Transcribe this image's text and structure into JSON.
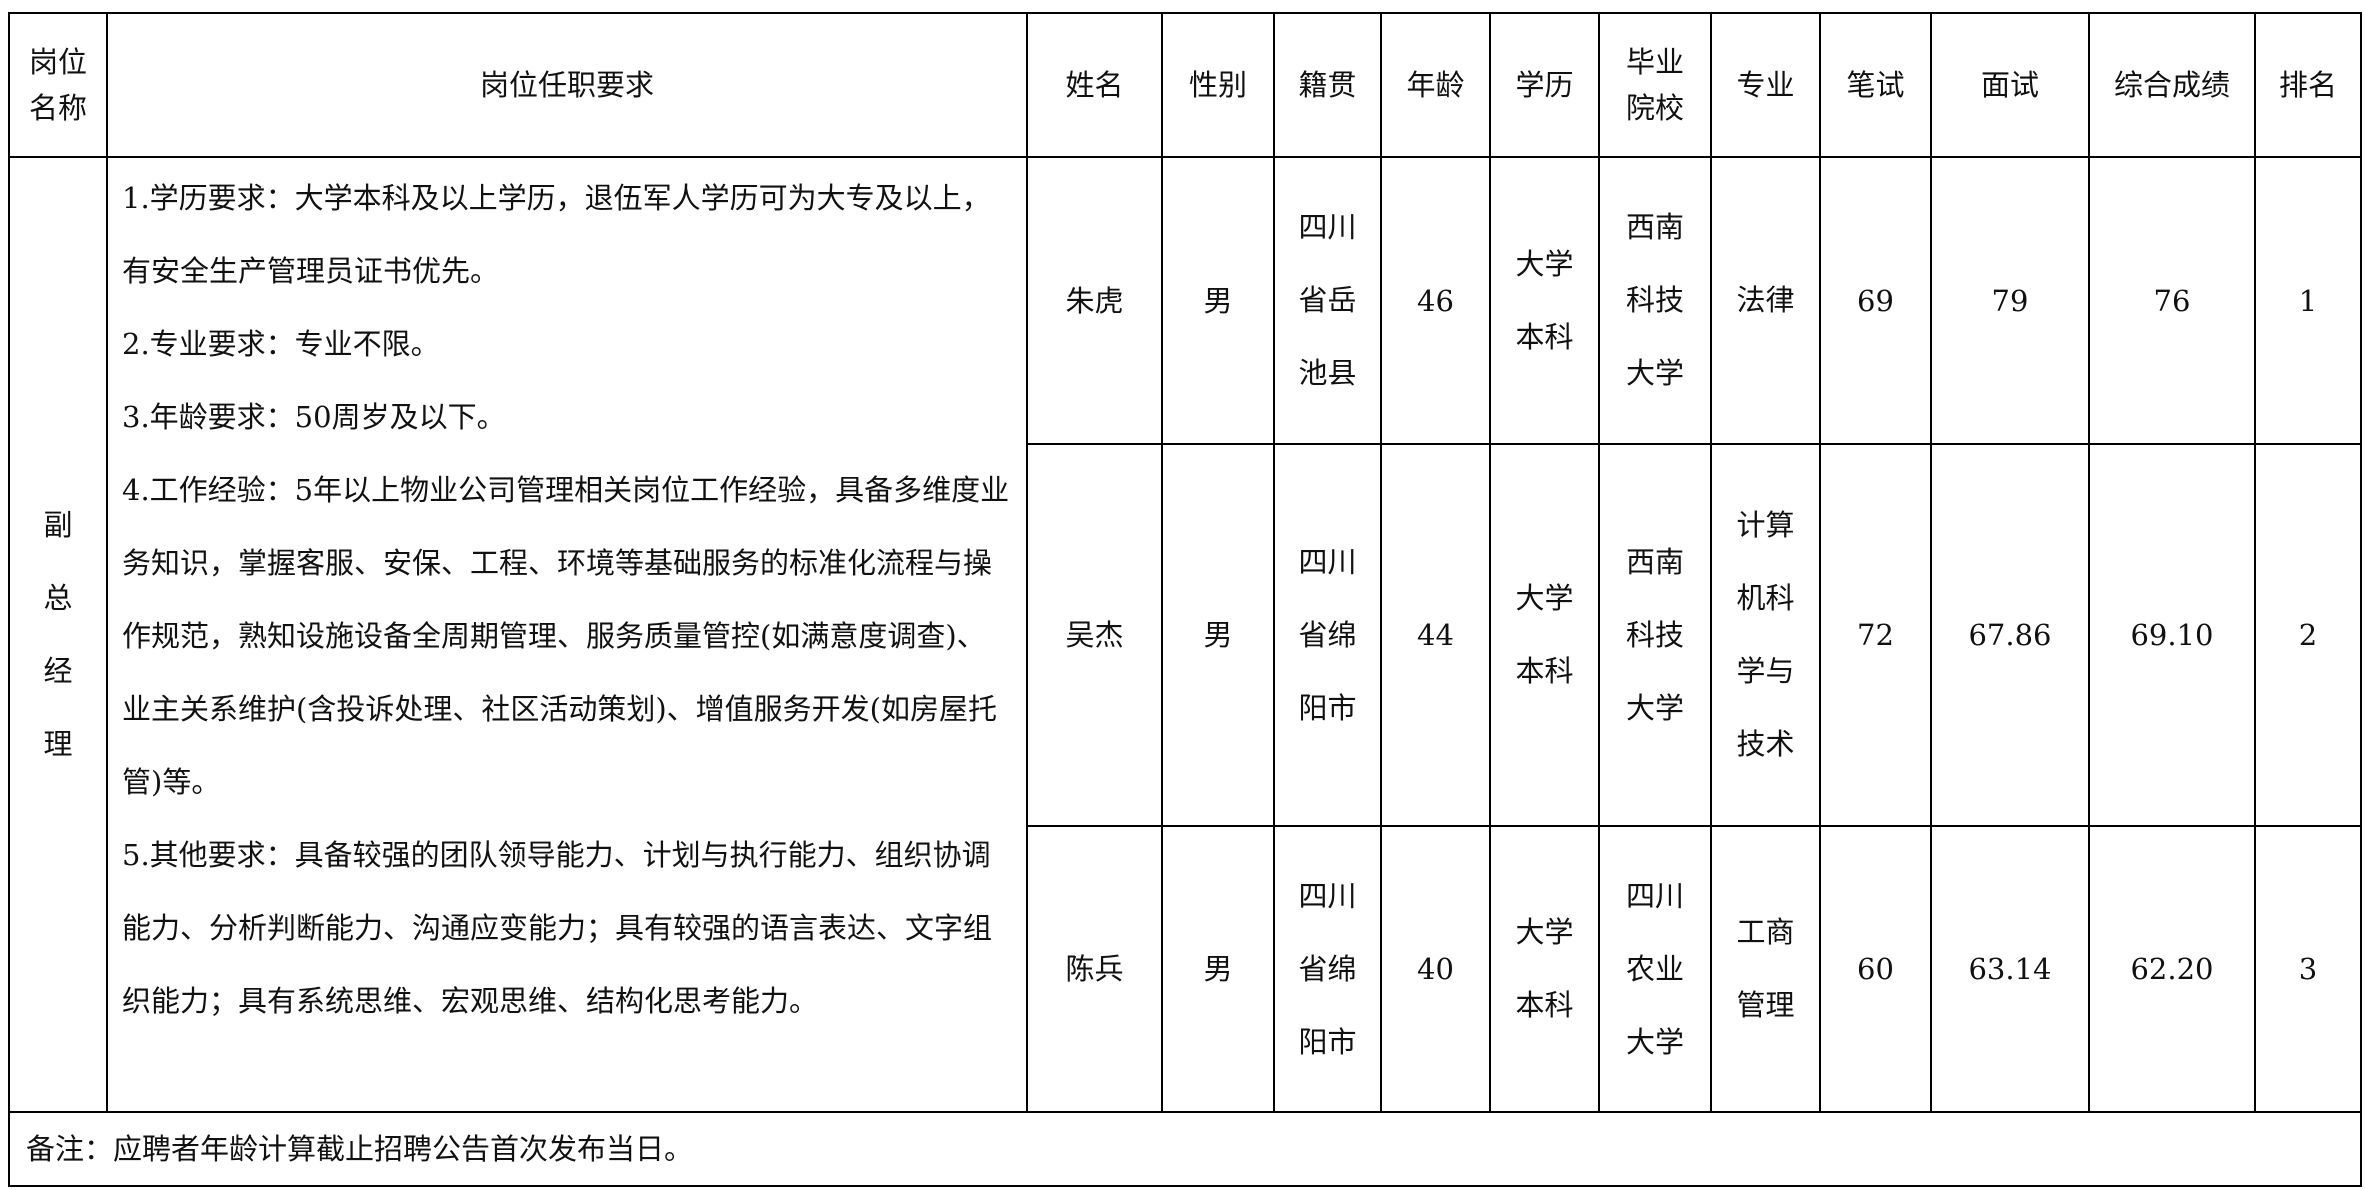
{
  "headers": [
    "岗位名称",
    "岗位任职要求",
    "姓名",
    "性别",
    "籍贯",
    "年龄",
    "学历",
    "毕业院校",
    "专业",
    "笔试",
    "面试",
    "综合成绩",
    "排名"
  ],
  "position": "副总经理",
  "requirements": [
    "1.学历要求：大学本科及以上学历，退伍军人学历可为大专及以上，有安全生产管理员证书优先。",
    "2.专业要求：专业不限。",
    "3.年龄要求：50周岁及以下。",
    "4.工作经验：5年以上物业公司管理相关岗位工作经验，具备多维度业务知识，掌握客服、安保、工程、环境等基础服务的标准化流程与操作规范，熟知设施设备全周期管理、服务质量管控(如满意度调查)、业主关系维护(含投诉处理、社区活动策划)、增值服务开发(如房屋托管)等。",
    "5.其他要求：具备较强的团队领导能力、计划与执行能力、组织协调能力、分析判断能力、沟通应变能力；具有较强的语言表达、文字组织能力；具有系统思维、宏观思维、结构化思考能力。"
  ],
  "rows": [
    {
      "name": "朱虎",
      "gender": "男",
      "origin": "四川省岳池县",
      "age": "46",
      "education": "大学本科",
      "school": "西南科技大学",
      "major": "法律",
      "written": "69",
      "interview": "79",
      "total": "76",
      "rank": "1"
    },
    {
      "name": "吴杰",
      "gender": "男",
      "origin": "四川省绵阳市",
      "age": "44",
      "education": "大学本科",
      "school": "西南科技大学",
      "major": "计算机科学与技术",
      "written": "72",
      "interview": "67.86",
      "total": "69.10",
      "rank": "2"
    },
    {
      "name": "陈兵",
      "gender": "男",
      "origin": "四川省绵阳市",
      "age": "40",
      "education": "大学本科",
      "school": "四川农业大学",
      "major": "工商管理",
      "written": "60",
      "interview": "63.14",
      "total": "62.20",
      "rank": "3"
    }
  ],
  "note": "备注：应聘者年龄计算截止招聘公告首次发布当日。"
}
